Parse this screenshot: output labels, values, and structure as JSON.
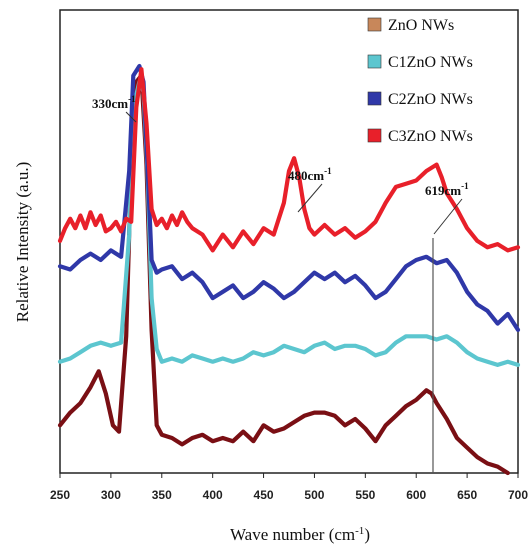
{
  "chart_data": {
    "type": "line",
    "xlabel": "Wave number (cm-1)",
    "xlabel_main": "Wave number (cm",
    "xlabel_sup": "-1",
    "xlabel_close": ")",
    "ylabel": "Relative Intensity (a.u.)",
    "xlim": [
      250,
      700
    ],
    "xticks": [
      "250",
      "300",
      "350",
      "400",
      "450",
      "500",
      "550",
      "600",
      "650",
      "700"
    ],
    "grid": false,
    "legend_position": "top-right",
    "annotations": [
      {
        "text": "330cm",
        "sup": "-1",
        "x": 330
      },
      {
        "text": "480cm",
        "sup": "-1",
        "x": 480
      },
      {
        "text": "619cm",
        "sup": "-1",
        "x": 619
      }
    ],
    "series": [
      {
        "name": "ZnO NWs",
        "legend_color": "#c8875a",
        "color": "#7a0f14",
        "x": [
          250,
          260,
          270,
          280,
          288,
          295,
          302,
          308,
          315,
          320,
          325,
          330,
          335,
          340,
          345,
          350,
          360,
          370,
          380,
          390,
          400,
          410,
          420,
          430,
          440,
          450,
          460,
          470,
          480,
          490,
          500,
          510,
          520,
          530,
          540,
          550,
          560,
          570,
          580,
          590,
          600,
          610,
          615,
          620,
          630,
          640,
          650,
          660,
          670,
          680,
          690
        ],
        "y": [
          0.1,
          0.14,
          0.17,
          0.22,
          0.27,
          0.2,
          0.1,
          0.08,
          0.38,
          0.92,
          1.18,
          1.2,
          0.92,
          0.4,
          0.1,
          0.07,
          0.06,
          0.04,
          0.06,
          0.07,
          0.05,
          0.06,
          0.05,
          0.08,
          0.05,
          0.1,
          0.08,
          0.09,
          0.11,
          0.13,
          0.14,
          0.14,
          0.13,
          0.1,
          0.12,
          0.09,
          0.05,
          0.1,
          0.13,
          0.16,
          0.18,
          0.21,
          0.2,
          0.17,
          0.12,
          0.06,
          0.03,
          0.0,
          -0.02,
          -0.03,
          -0.05
        ]
      },
      {
        "name": "C1ZnO NWs",
        "legend_color": "#5cc6cf",
        "color": "#5cc6cf",
        "x": [
          250,
          260,
          270,
          280,
          290,
          300,
          310,
          318,
          322,
          328,
          332,
          336,
          340,
          345,
          350,
          360,
          370,
          380,
          390,
          400,
          410,
          420,
          430,
          440,
          450,
          460,
          470,
          480,
          490,
          500,
          510,
          520,
          530,
          540,
          550,
          560,
          570,
          580,
          590,
          600,
          610,
          620,
          630,
          640,
          650,
          660,
          670,
          680,
          690,
          700
        ],
        "y": [
          0.3,
          0.31,
          0.33,
          0.35,
          0.36,
          0.35,
          0.36,
          0.7,
          1.1,
          1.18,
          1.15,
          0.9,
          0.5,
          0.34,
          0.3,
          0.31,
          0.3,
          0.32,
          0.31,
          0.3,
          0.31,
          0.3,
          0.31,
          0.33,
          0.32,
          0.33,
          0.35,
          0.34,
          0.33,
          0.35,
          0.36,
          0.34,
          0.35,
          0.35,
          0.34,
          0.32,
          0.33,
          0.36,
          0.38,
          0.38,
          0.38,
          0.37,
          0.38,
          0.36,
          0.33,
          0.31,
          0.3,
          0.29,
          0.3,
          0.29
        ]
      },
      {
        "name": "C2ZnO NWs",
        "legend_color": "#2f38a8",
        "color": "#2f38a8",
        "x": [
          250,
          260,
          270,
          280,
          290,
          300,
          310,
          318,
          322,
          328,
          332,
          336,
          340,
          345,
          350,
          360,
          370,
          380,
          390,
          400,
          410,
          420,
          430,
          440,
          450,
          460,
          470,
          480,
          490,
          500,
          510,
          520,
          530,
          540,
          550,
          560,
          570,
          580,
          590,
          600,
          610,
          620,
          630,
          640,
          650,
          660,
          670,
          680,
          690,
          700
        ],
        "y": [
          0.6,
          0.59,
          0.62,
          0.64,
          0.62,
          0.65,
          0.63,
          0.9,
          1.2,
          1.23,
          1.18,
          0.92,
          0.62,
          0.58,
          0.59,
          0.6,
          0.56,
          0.58,
          0.55,
          0.5,
          0.52,
          0.54,
          0.5,
          0.52,
          0.55,
          0.53,
          0.5,
          0.52,
          0.55,
          0.58,
          0.56,
          0.58,
          0.55,
          0.57,
          0.54,
          0.5,
          0.52,
          0.56,
          0.6,
          0.62,
          0.63,
          0.61,
          0.62,
          0.58,
          0.52,
          0.48,
          0.46,
          0.42,
          0.45,
          0.4
        ]
      },
      {
        "name": "C3ZnO NWs",
        "legend_color": "#e8202a",
        "color": "#e8202a",
        "x": [
          250,
          255,
          260,
          265,
          270,
          275,
          280,
          285,
          290,
          295,
          300,
          305,
          310,
          315,
          320,
          325,
          330,
          335,
          340,
          345,
          350,
          355,
          360,
          365,
          370,
          375,
          380,
          390,
          400,
          410,
          420,
          430,
          440,
          450,
          460,
          465,
          470,
          475,
          480,
          485,
          490,
          495,
          500,
          510,
          520,
          530,
          540,
          550,
          560,
          570,
          580,
          590,
          600,
          610,
          620,
          625,
          630,
          640,
          650,
          660,
          670,
          680,
          690,
          700
        ],
        "y": [
          0.68,
          0.72,
          0.75,
          0.72,
          0.76,
          0.72,
          0.77,
          0.73,
          0.76,
          0.71,
          0.72,
          0.74,
          0.71,
          0.75,
          0.74,
          1.1,
          1.22,
          1.05,
          0.78,
          0.73,
          0.75,
          0.72,
          0.76,
          0.73,
          0.77,
          0.74,
          0.72,
          0.7,
          0.65,
          0.7,
          0.66,
          0.71,
          0.67,
          0.72,
          0.7,
          0.75,
          0.8,
          0.9,
          0.94,
          0.88,
          0.78,
          0.72,
          0.7,
          0.73,
          0.7,
          0.72,
          0.69,
          0.71,
          0.74,
          0.8,
          0.85,
          0.86,
          0.87,
          0.9,
          0.92,
          0.88,
          0.83,
          0.78,
          0.72,
          0.68,
          0.66,
          0.67,
          0.65,
          0.66
        ]
      }
    ]
  }
}
